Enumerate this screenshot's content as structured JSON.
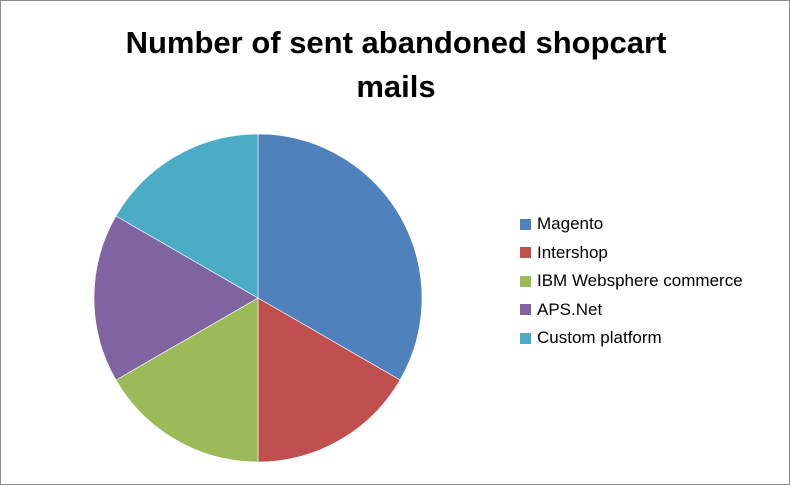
{
  "chart_data": {
    "type": "pie",
    "title_lines": [
      "Number of sent abandoned shopcart",
      "mails"
    ],
    "categories": [
      "Magento",
      "Intershop",
      "IBM Websphere commerce",
      "APS.Net",
      "Custom platform"
    ],
    "values": [
      2,
      1,
      1,
      1,
      1
    ],
    "colors": [
      "#4f81bd",
      "#c0504d",
      "#9bbb59",
      "#8064a2",
      "#4bacc6"
    ],
    "legend_position": "right"
  }
}
